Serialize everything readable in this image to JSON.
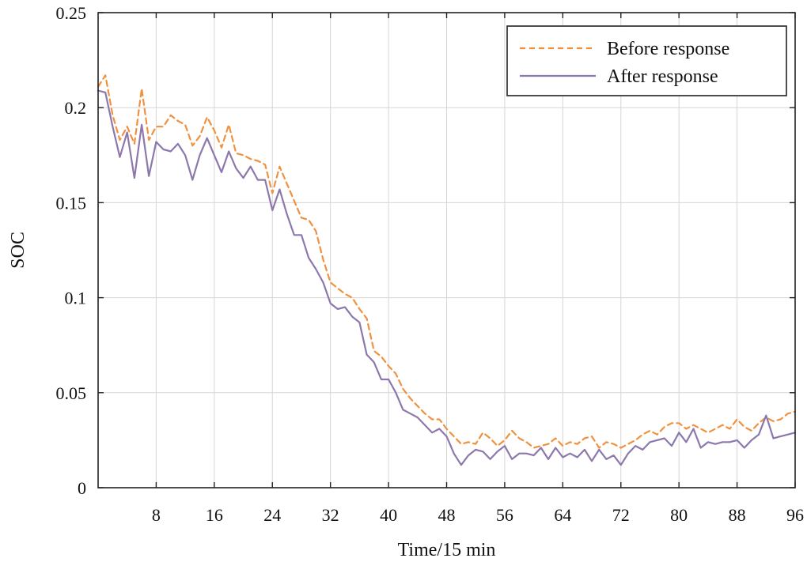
{
  "chart_data": {
    "type": "line",
    "xlabel": "Time/15 min",
    "ylabel": "SOC",
    "xlim": [
      0,
      96
    ],
    "ylim": [
      0,
      0.25
    ],
    "xticks": [
      8,
      16,
      24,
      32,
      40,
      48,
      56,
      64,
      72,
      80,
      88,
      96
    ],
    "xtick_labels": [
      "8",
      "16",
      "24",
      "32",
      "40",
      "48",
      "56",
      "64",
      "72",
      "80",
      "88",
      "96"
    ],
    "yticks": [
      0,
      0.05,
      0.1,
      0.15,
      0.2,
      0.25
    ],
    "ytick_labels": [
      "0",
      "0.05",
      "0.1",
      "0.15",
      "0.2",
      "0.25"
    ],
    "grid": true,
    "legend_position": "top-right",
    "series": [
      {
        "name": "Before response",
        "color": "#f0913f",
        "style": "dashed",
        "x": [
          0,
          1,
          2,
          3,
          4,
          5,
          6,
          7,
          8,
          9,
          10,
          11,
          12,
          13,
          14,
          15,
          16,
          17,
          18,
          19,
          20,
          21,
          22,
          23,
          24,
          25,
          26,
          27,
          28,
          29,
          30,
          31,
          32,
          33,
          34,
          35,
          36,
          37,
          38,
          39,
          40,
          41,
          42,
          43,
          44,
          45,
          46,
          47,
          48,
          49,
          50,
          51,
          52,
          53,
          54,
          55,
          56,
          57,
          58,
          59,
          60,
          61,
          62,
          63,
          64,
          65,
          66,
          67,
          68,
          69,
          70,
          71,
          72,
          73,
          74,
          75,
          76,
          77,
          78,
          79,
          80,
          81,
          82,
          83,
          84,
          85,
          86,
          87,
          88,
          89,
          90,
          91,
          92,
          93,
          94,
          95,
          96
        ],
        "values": [
          0.211,
          0.217,
          0.196,
          0.183,
          0.19,
          0.181,
          0.21,
          0.183,
          0.19,
          0.19,
          0.196,
          0.193,
          0.191,
          0.18,
          0.185,
          0.195,
          0.188,
          0.179,
          0.191,
          0.176,
          0.175,
          0.173,
          0.172,
          0.17,
          0.155,
          0.169,
          0.16,
          0.151,
          0.142,
          0.141,
          0.135,
          0.12,
          0.108,
          0.105,
          0.102,
          0.1,
          0.094,
          0.089,
          0.072,
          0.069,
          0.064,
          0.06,
          0.052,
          0.047,
          0.043,
          0.039,
          0.036,
          0.036,
          0.031,
          0.027,
          0.023,
          0.024,
          0.023,
          0.029,
          0.026,
          0.022,
          0.025,
          0.03,
          0.026,
          0.024,
          0.021,
          0.022,
          0.023,
          0.026,
          0.022,
          0.024,
          0.023,
          0.026,
          0.027,
          0.021,
          0.024,
          0.023,
          0.021,
          0.023,
          0.025,
          0.028,
          0.03,
          0.028,
          0.032,
          0.034,
          0.034,
          0.031,
          0.033,
          0.031,
          0.029,
          0.031,
          0.033,
          0.031,
          0.036,
          0.032,
          0.03,
          0.034,
          0.037,
          0.035,
          0.036,
          0.039,
          0.04
        ]
      },
      {
        "name": "After response",
        "color": "#8c78ac",
        "style": "solid",
        "x": [
          0,
          1,
          2,
          3,
          4,
          5,
          6,
          7,
          8,
          9,
          10,
          11,
          12,
          13,
          14,
          15,
          16,
          17,
          18,
          19,
          20,
          21,
          22,
          23,
          24,
          25,
          26,
          27,
          28,
          29,
          30,
          31,
          32,
          33,
          34,
          35,
          36,
          37,
          38,
          39,
          40,
          41,
          42,
          43,
          44,
          45,
          46,
          47,
          48,
          49,
          50,
          51,
          52,
          53,
          54,
          55,
          56,
          57,
          58,
          59,
          60,
          61,
          62,
          63,
          64,
          65,
          66,
          67,
          68,
          69,
          70,
          71,
          72,
          73,
          74,
          75,
          76,
          77,
          78,
          79,
          80,
          81,
          82,
          83,
          84,
          85,
          86,
          87,
          88,
          89,
          90,
          91,
          92,
          93,
          94,
          95,
          96
        ],
        "values": [
          0.209,
          0.208,
          0.19,
          0.174,
          0.187,
          0.163,
          0.191,
          0.164,
          0.182,
          0.178,
          0.177,
          0.181,
          0.175,
          0.162,
          0.175,
          0.184,
          0.175,
          0.166,
          0.177,
          0.168,
          0.163,
          0.169,
          0.162,
          0.162,
          0.146,
          0.157,
          0.144,
          0.133,
          0.133,
          0.121,
          0.115,
          0.108,
          0.097,
          0.094,
          0.095,
          0.09,
          0.087,
          0.07,
          0.066,
          0.057,
          0.057,
          0.05,
          0.041,
          0.039,
          0.037,
          0.033,
          0.029,
          0.031,
          0.027,
          0.018,
          0.012,
          0.017,
          0.02,
          0.019,
          0.015,
          0.019,
          0.022,
          0.015,
          0.018,
          0.018,
          0.017,
          0.021,
          0.015,
          0.021,
          0.016,
          0.018,
          0.016,
          0.02,
          0.014,
          0.02,
          0.015,
          0.017,
          0.012,
          0.018,
          0.022,
          0.02,
          0.024,
          0.025,
          0.026,
          0.022,
          0.029,
          0.024,
          0.031,
          0.021,
          0.024,
          0.023,
          0.024,
          0.024,
          0.025,
          0.021,
          0.025,
          0.028,
          0.038,
          0.026,
          0.027,
          0.028,
          0.029
        ]
      }
    ]
  }
}
